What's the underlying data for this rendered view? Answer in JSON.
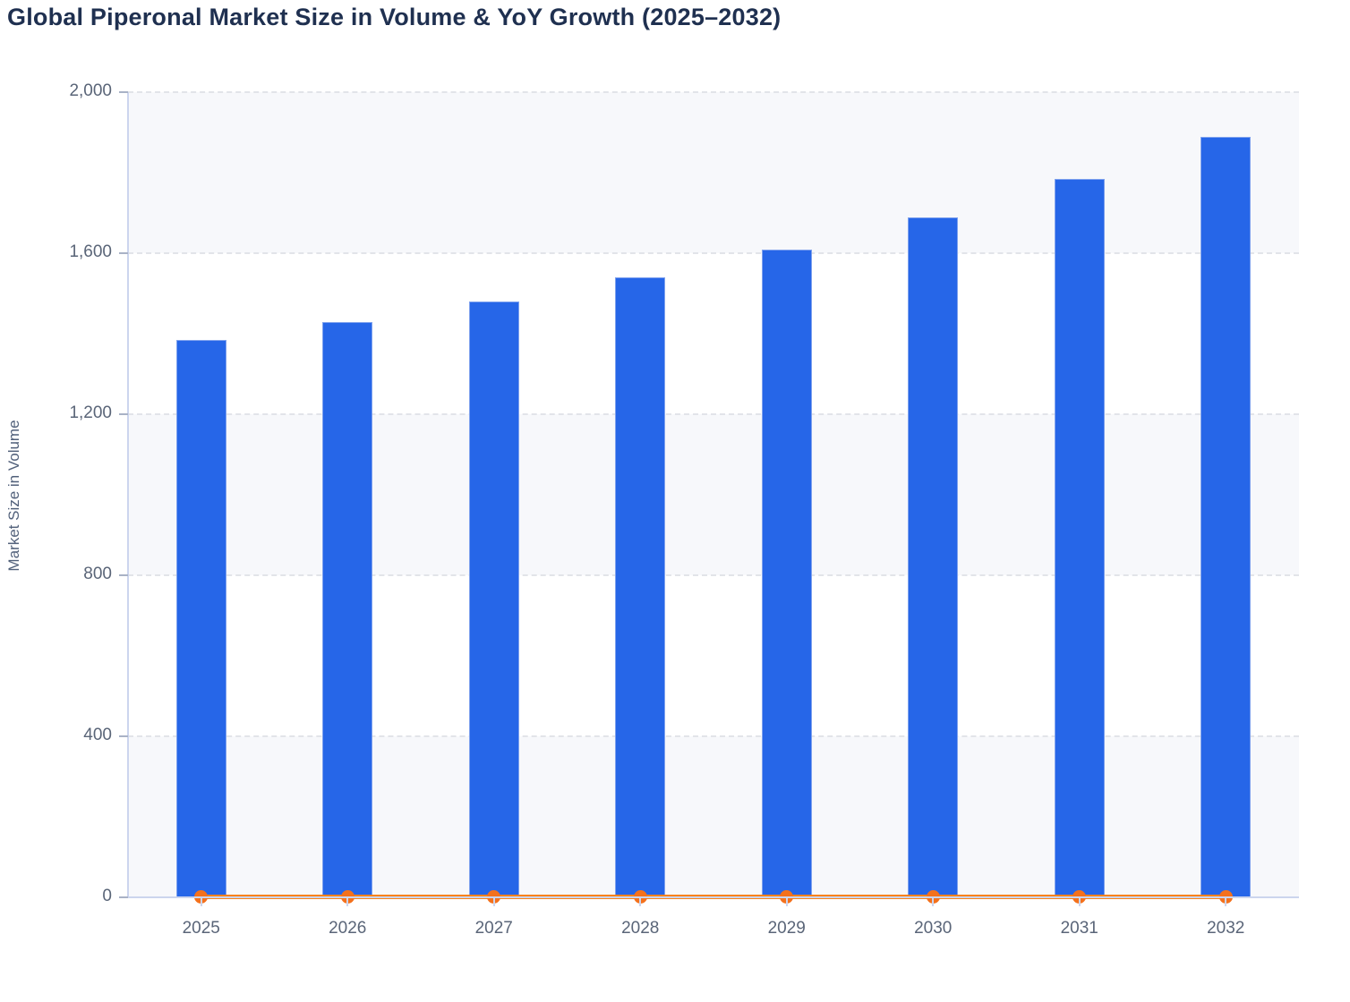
{
  "chart": {
    "title": "Global Piperonal Market Size in Volume & YoY Growth (2025–2032)",
    "y_axis_label": "Market Size in Volume"
  },
  "chart_data": {
    "type": "bar",
    "title": "Global Piperonal Market Size in Volume & YoY Growth (2025–2032)",
    "categories": [
      "2025",
      "2026",
      "2027",
      "2028",
      "2029",
      "2030",
      "2031",
      "2032"
    ],
    "series": [
      {
        "name": "Market Size in Volume",
        "type": "bar",
        "color": "#2666e8",
        "values": [
          1385,
          1430,
          1480,
          1540,
          1610,
          1690,
          1785,
          1890
        ]
      },
      {
        "name": "YoY Growth",
        "type": "line",
        "color": "#f8821c",
        "point_color": "#f4711c",
        "values": [
          0,
          0,
          0,
          0,
          0,
          0,
          0,
          0
        ],
        "note": "YoY growth line renders flat at ~0 on the left value axis, with a dot at each year"
      }
    ],
    "xlabel": "",
    "ylabel": "Market Size in Volume",
    "ylim": [
      0,
      2000
    ],
    "yticks": [
      0,
      400,
      800,
      1200,
      1600,
      2000
    ],
    "ytick_labels": [
      "0",
      "400",
      "800",
      "1,200",
      "1,600",
      "2,000"
    ],
    "grid": "horizontal dashed gridlines at each y tick",
    "plot_bands": "alternating horizontal bands tinted between 0-400, 800-1200, 1600-2000",
    "legend": "none"
  },
  "colors": {
    "title": "#1f3050",
    "axis_text": "#5a6578",
    "axis_line": "#ccd5ee",
    "gridline": "#e2e4e9",
    "band": "#f7f8fb",
    "bar": "#2666e8",
    "bar_border": "#7fa2ee",
    "line": "#f8821c",
    "point": "#f4711c",
    "background": "#ffffff"
  }
}
